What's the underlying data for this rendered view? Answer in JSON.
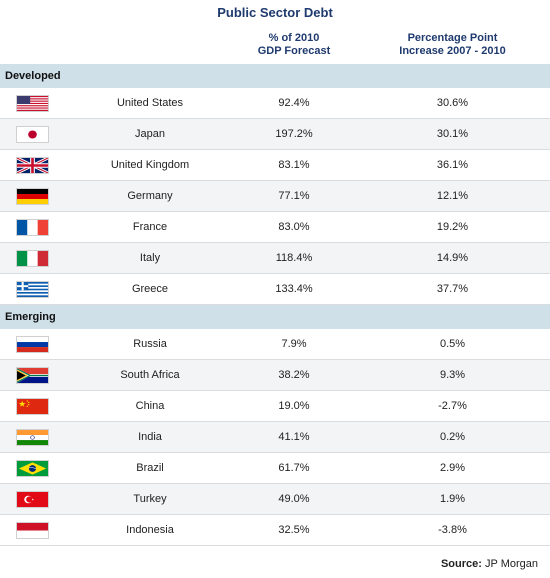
{
  "title": "Public Sector Debt",
  "headers": {
    "gdp_line1": "% of 2010",
    "gdp_line2": "GDP Forecast",
    "inc_line1": "Percentage Point",
    "inc_line2": "Increase 2007 - 2010"
  },
  "sections": [
    {
      "label": "Developed",
      "rows": [
        {
          "flag": "us-flag-icon",
          "country": "United States",
          "gdp": "92.4%",
          "increase": "30.6%"
        },
        {
          "flag": "japan-flag-icon",
          "country": "Japan",
          "gdp": "197.2%",
          "increase": "30.1%"
        },
        {
          "flag": "uk-flag-icon",
          "country": "United Kingdom",
          "gdp": "83.1%",
          "increase": "36.1%"
        },
        {
          "flag": "germany-flag-icon",
          "country": "Germany",
          "gdp": "77.1%",
          "increase": "12.1%"
        },
        {
          "flag": "france-flag-icon",
          "country": "France",
          "gdp": "83.0%",
          "increase": "19.2%"
        },
        {
          "flag": "italy-flag-icon",
          "country": "Italy",
          "gdp": "118.4%",
          "increase": "14.9%"
        },
        {
          "flag": "greece-flag-icon",
          "country": "Greece",
          "gdp": "133.4%",
          "increase": "37.7%"
        }
      ]
    },
    {
      "label": "Emerging",
      "rows": [
        {
          "flag": "russia-flag-icon",
          "country": "Russia",
          "gdp": "7.9%",
          "increase": "0.5%"
        },
        {
          "flag": "south-africa-flag-icon",
          "country": "South Africa",
          "gdp": "38.2%",
          "increase": "9.3%"
        },
        {
          "flag": "china-flag-icon",
          "country": "China",
          "gdp": "19.0%",
          "increase": "-2.7%"
        },
        {
          "flag": "india-flag-icon",
          "country": "India",
          "gdp": "41.1%",
          "increase": "0.2%"
        },
        {
          "flag": "brazil-flag-icon",
          "country": "Brazil",
          "gdp": "61.7%",
          "increase": "2.9%"
        },
        {
          "flag": "turkey-flag-icon",
          "country": "Turkey",
          "gdp": "49.0%",
          "increase": "1.9%"
        },
        {
          "flag": "indonesia-flag-icon",
          "country": "Indonesia",
          "gdp": "32.5%",
          "increase": "-3.8%"
        }
      ]
    }
  ],
  "source": {
    "label": "Source:",
    "value": "JP Morgan"
  },
  "colors": {
    "title": "#1f3a6e",
    "section_bg": "#cfe0e8",
    "row_alt": "#f3f4f5"
  }
}
